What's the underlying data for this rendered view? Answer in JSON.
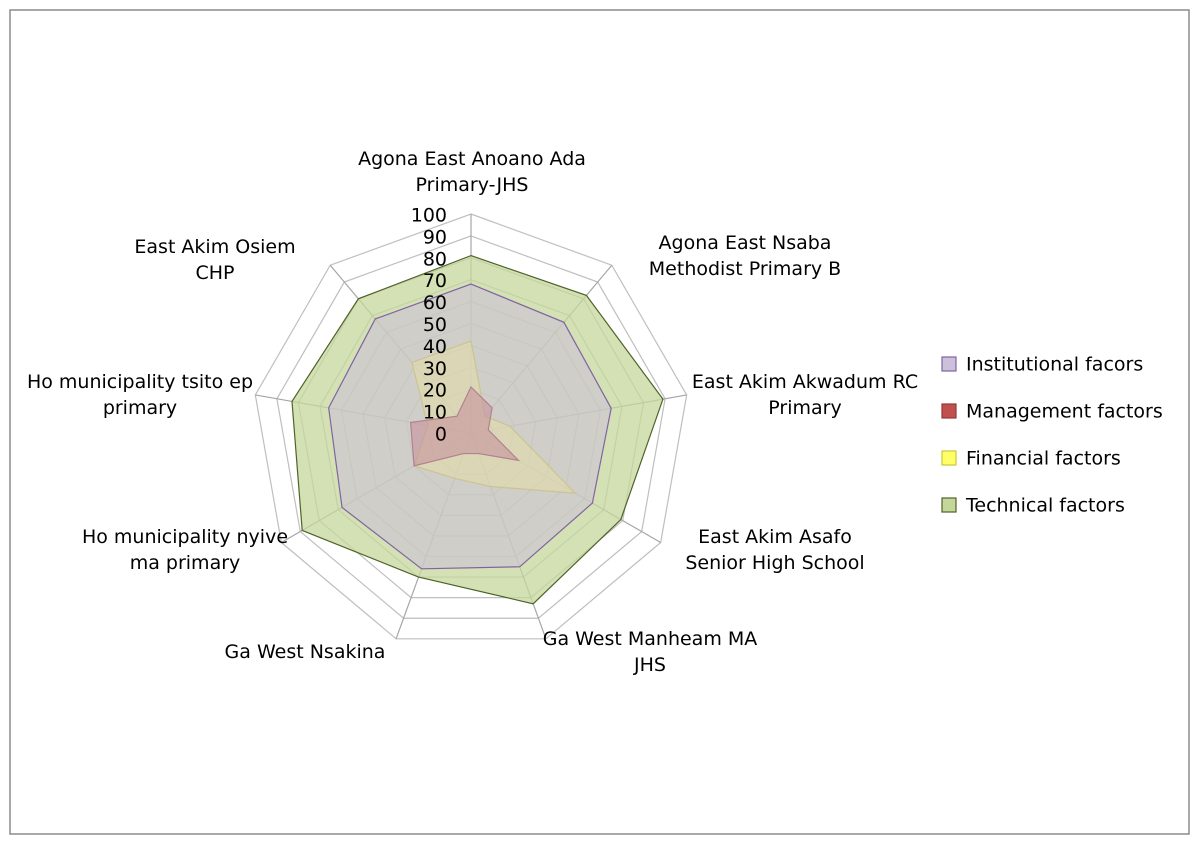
{
  "chart_data": {
    "type": "radar",
    "categories": [
      "Agona East Anoano Ada Primary-JHS",
      "Agona East Nsaba Methodist Primary B",
      "East Akim Akwadum RC Primary",
      "East Akim Asafo Senior High School",
      "Ga West Manheam MA JHS",
      "Ga West Nsakina",
      "Ho municipality nyive ma primary",
      "Ho municipality tsito ep primary",
      "East Akim Osiem CHP"
    ],
    "series": [
      {
        "name": "Institutional facors",
        "color": "#ccc0da",
        "values": [
          68,
          66,
          65,
          64,
          65,
          66,
          68,
          66,
          68
        ]
      },
      {
        "name": "Management factors",
        "color": "#c0504d",
        "values": [
          21,
          15,
          8,
          25,
          10,
          10,
          30,
          28,
          10
        ]
      },
      {
        "name": "Financial factors",
        "color": "#ffff66",
        "values": [
          42,
          10,
          18,
          55,
          26,
          22,
          30,
          20,
          42
        ]
      },
      {
        "name": "Technical factors",
        "color": "#c4d79b",
        "values": [
          81,
          82,
          89,
          79,
          83,
          70,
          89,
          83,
          80
        ]
      }
    ],
    "ylim": [
      0,
      100
    ],
    "yticks": [
      0,
      10,
      20,
      30,
      40,
      50,
      60,
      70,
      80,
      90,
      100
    ],
    "grid": true,
    "legend": "right"
  }
}
